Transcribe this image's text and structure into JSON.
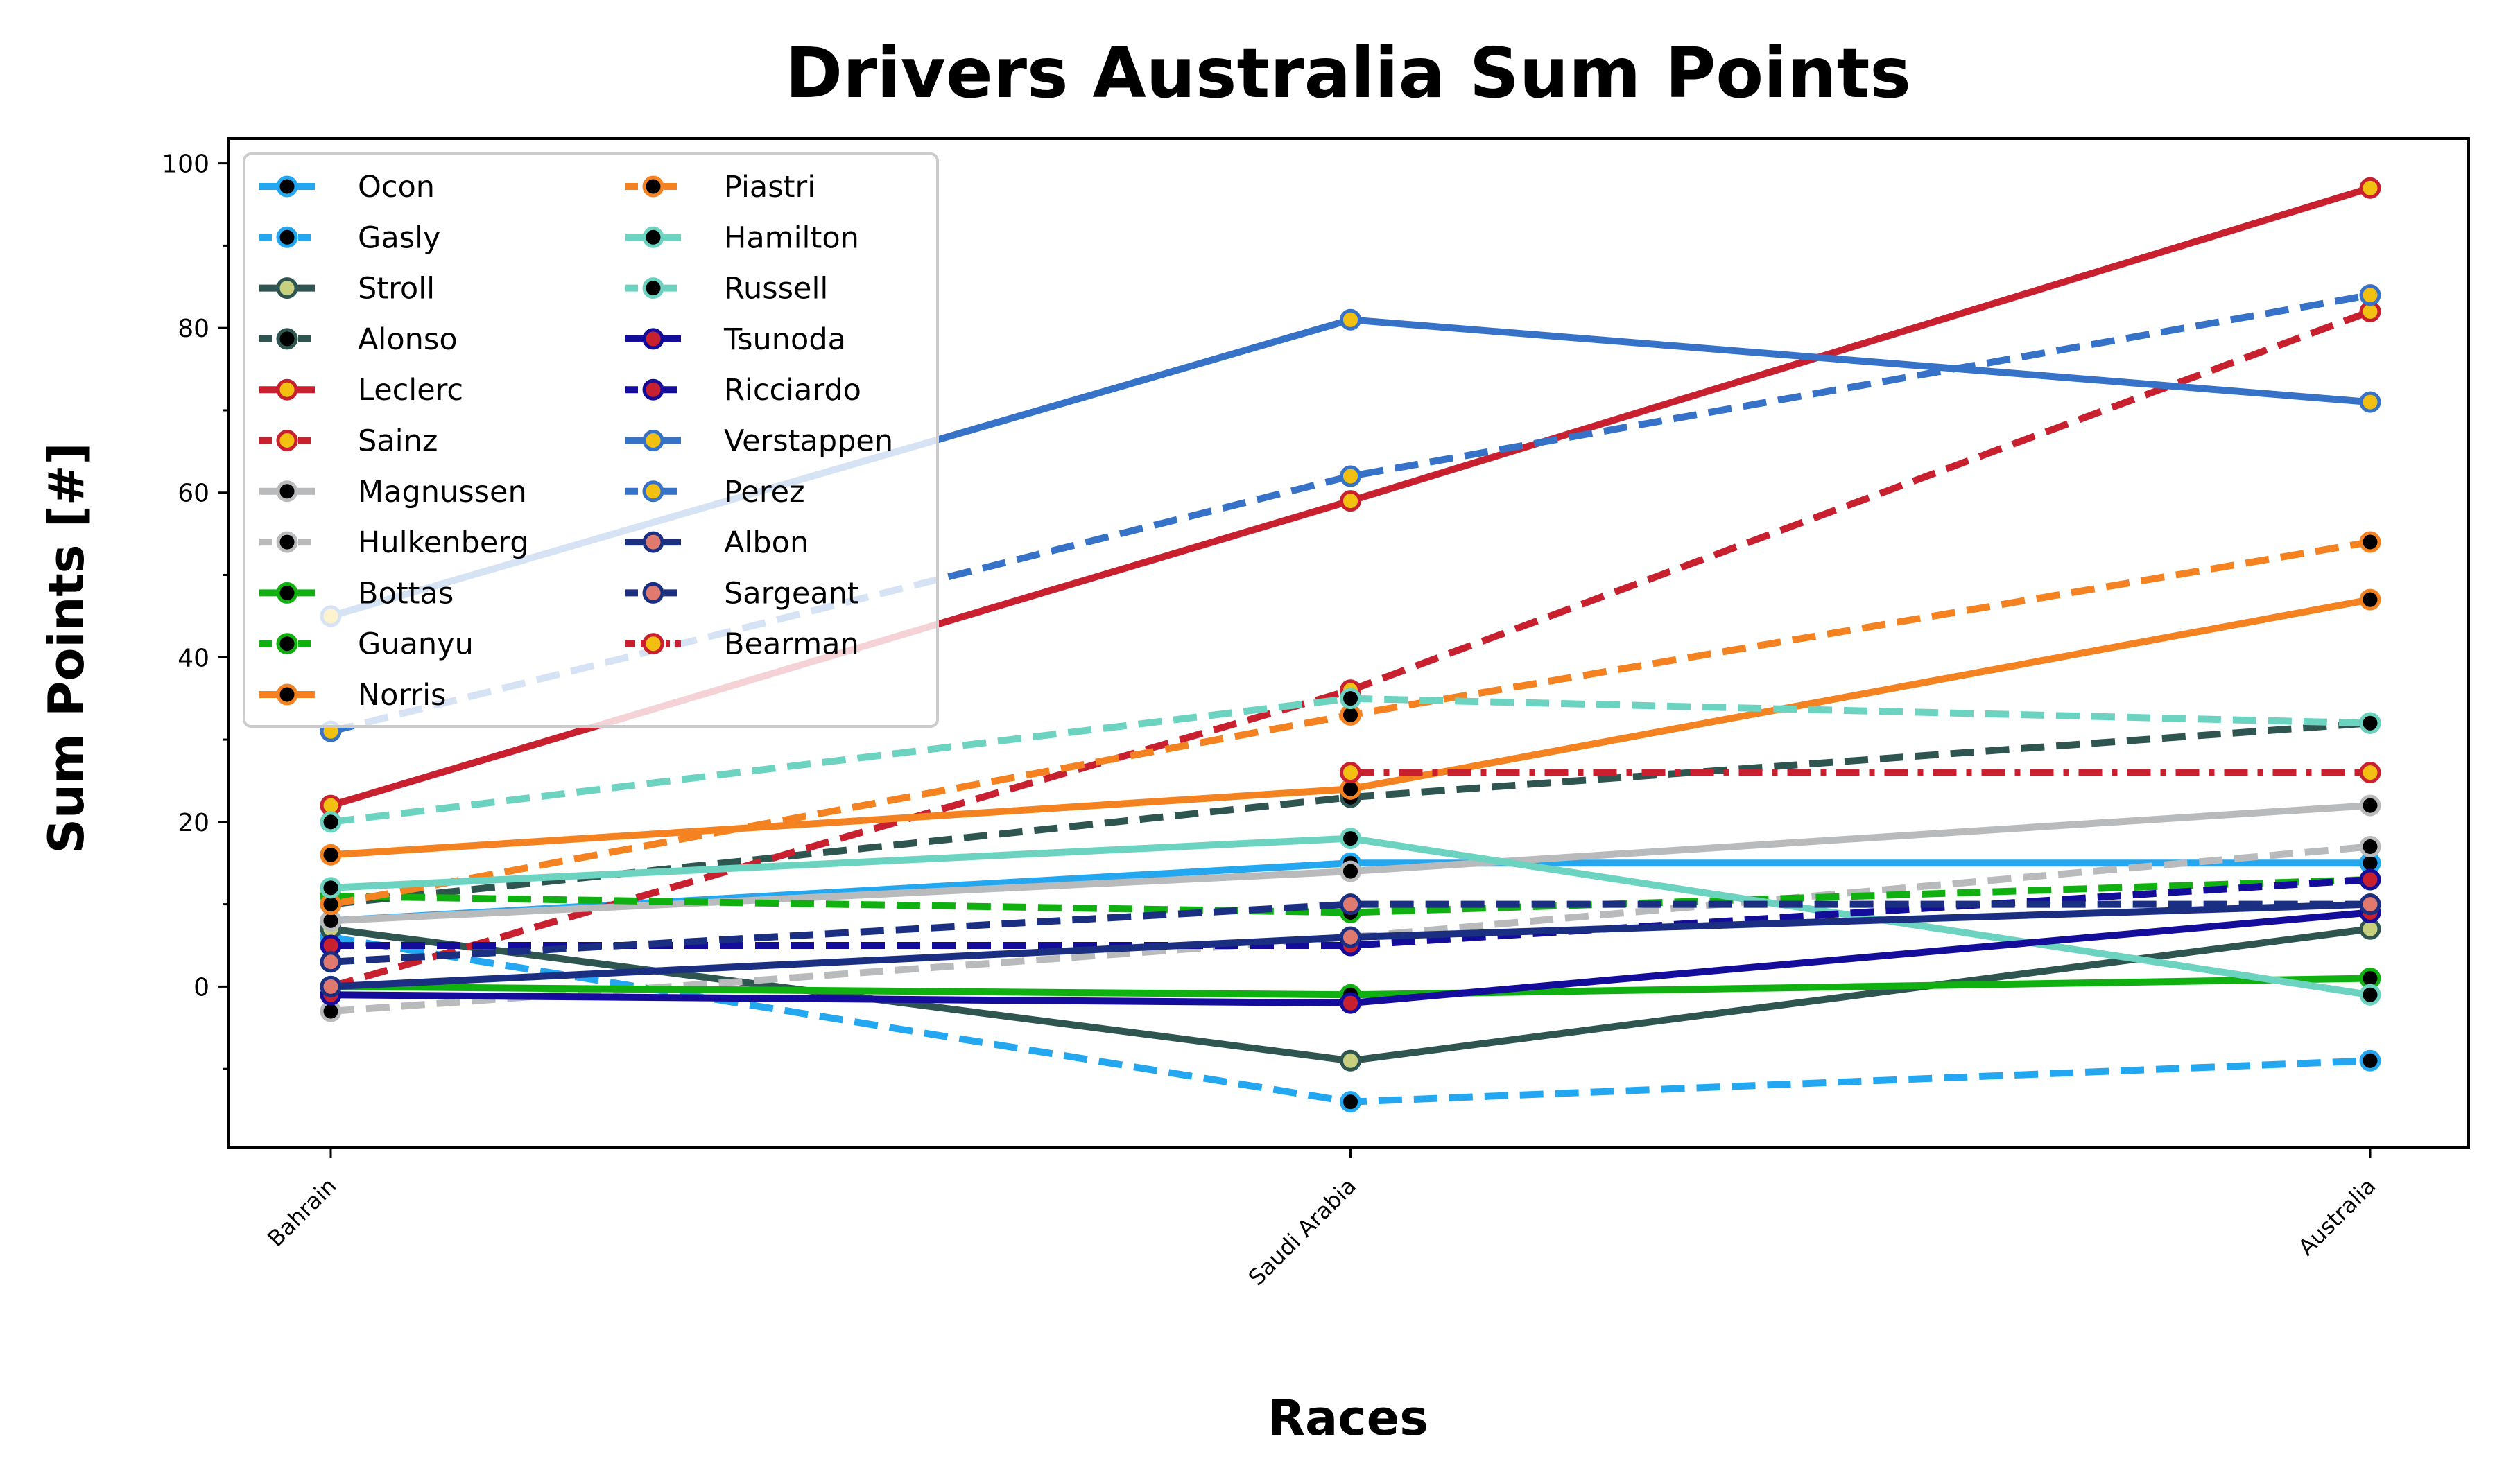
{
  "chart_data": {
    "type": "line",
    "title": "Drivers Australia Sum Points",
    "xlabel": "Races",
    "ylabel": "Sum Points [#]",
    "categories": [
      "Bahrain",
      "Saudi Arabia",
      "Australia"
    ],
    "ylim": [
      -19.5,
      103
    ],
    "yticks": [
      0,
      20,
      40,
      60,
      80,
      100
    ],
    "grid": false,
    "legend": "top-left",
    "series": [
      {
        "name": "Ocon",
        "values": [
          8,
          15,
          15
        ],
        "color": "#22a7f0",
        "dash": "solid",
        "marker": "#000000"
      },
      {
        "name": "Gasly",
        "values": [
          6,
          -14,
          -9
        ],
        "color": "#22a7f0",
        "dash": "dashed",
        "marker": "#000000"
      },
      {
        "name": "Stroll",
        "values": [
          7,
          -9,
          7
        ],
        "color": "#2f5550",
        "dash": "solid",
        "marker": "#c8d080"
      },
      {
        "name": "Alonso",
        "values": [
          10,
          23,
          32
        ],
        "color": "#2f5550",
        "dash": "dashed",
        "marker": "#000000"
      },
      {
        "name": "Leclerc",
        "values": [
          22,
          59,
          97
        ],
        "color": "#c8202e",
        "dash": "solid",
        "marker": "#f2c010"
      },
      {
        "name": "Sainz",
        "values": [
          0,
          36,
          82
        ],
        "color": "#c8202e",
        "dash": "dashed",
        "marker": "#f2c010"
      },
      {
        "name": "Magnussen",
        "values": [
          8,
          14,
          22
        ],
        "color": "#b8babc",
        "dash": "solid",
        "marker": "#000000"
      },
      {
        "name": "Hulkenberg",
        "values": [
          -3,
          6,
          17
        ],
        "color": "#b8babc",
        "dash": "dashed",
        "marker": "#000000"
      },
      {
        "name": "Bottas",
        "values": [
          0,
          -1,
          1
        ],
        "color": "#10b010",
        "dash": "solid",
        "marker": "#000000"
      },
      {
        "name": "Guanyu",
        "values": [
          11,
          9,
          13
        ],
        "color": "#10b010",
        "dash": "dashed",
        "marker": "#000000"
      },
      {
        "name": "Norris",
        "values": [
          16,
          24,
          47
        ],
        "color": "#f58220",
        "dash": "solid",
        "marker": "#000000"
      },
      {
        "name": "Piastri",
        "values": [
          10,
          33,
          54
        ],
        "color": "#f58220",
        "dash": "dashed",
        "marker": "#000000"
      },
      {
        "name": "Hamilton",
        "values": [
          12,
          18,
          -1
        ],
        "color": "#6cd3c0",
        "dash": "solid",
        "marker": "#000000"
      },
      {
        "name": "Russell",
        "values": [
          20,
          35,
          32
        ],
        "color": "#6cd3c0",
        "dash": "dashed",
        "marker": "#000000"
      },
      {
        "name": "Tsunoda",
        "values": [
          -1,
          -2,
          9
        ],
        "color": "#140c9a",
        "dash": "solid",
        "marker": "#c8202e"
      },
      {
        "name": "Ricciardo",
        "values": [
          5,
          5,
          13
        ],
        "color": "#140c9a",
        "dash": "dashed",
        "marker": "#c8202e"
      },
      {
        "name": "Verstappen",
        "values": [
          45,
          81,
          71
        ],
        "color": "#3672c8",
        "dash": "solid",
        "marker": "#f2c010"
      },
      {
        "name": "Perez",
        "values": [
          31,
          62,
          84
        ],
        "color": "#3672c8",
        "dash": "dashed",
        "marker": "#f2c010"
      },
      {
        "name": "Albon",
        "values": [
          0,
          6,
          10
        ],
        "color": "#1a2e82",
        "dash": "solid",
        "marker": "#e07a6e"
      },
      {
        "name": "Sargeant",
        "values": [
          3,
          10,
          10
        ],
        "color": "#1a2e82",
        "dash": "dashed",
        "marker": "#e07a6e"
      },
      {
        "name": "Bearman",
        "values": [
          null,
          26,
          26
        ],
        "color": "#c8202e",
        "dash": "dashdot",
        "marker": "#f2c010"
      }
    ]
  }
}
